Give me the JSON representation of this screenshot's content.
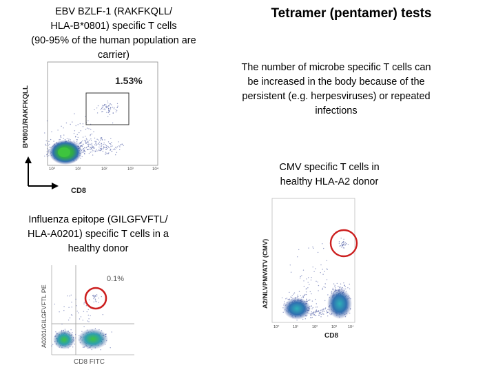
{
  "title": "Tetramer (pentamer) tests",
  "ebv_caption": [
    "EBV BZLF-1 (RAKFKQLL/",
    "HLA-B*0801) specific T cells",
    "(90-95% of the human population are",
    "carrier)"
  ],
  "explanation": [
    "The number of microbe specific T cells can",
    "be increased in the body because of the",
    "persistent (e.g. herpesviruses) or repeated",
    "infections"
  ],
  "cmv_caption": [
    "CMV specific T cells in",
    "healthy HLA-A2 donor"
  ],
  "flu_caption": [
    "Influenza epitope (GILGFVFTL/",
    "HLA-A0201) specific T cells in a",
    "healthy donor"
  ],
  "plot_ebv": {
    "ylabel": "B*0801/RAKFKQLL",
    "xlabel": "CD8",
    "percent": "1.53%",
    "ticks": [
      "10⁰",
      "10¹",
      "10²",
      "10³",
      "10⁴"
    ]
  },
  "plot_cmv": {
    "ylabel": "A2/NLVPMVATV (CMV)",
    "xlabel": "CD8",
    "ticks": [
      "10⁰",
      "10¹",
      "10²",
      "10³",
      "10⁴"
    ]
  },
  "plot_flu": {
    "ylabel": "A0201/GILGFVFTL PE",
    "xlabel": "CD8 FITC",
    "percent": "0.1%"
  },
  "colors": {
    "gate_box": "#333333",
    "highlight_circle": "#cc1f1f",
    "dots": "#3a4a9a",
    "hot": "#3ec43e"
  }
}
